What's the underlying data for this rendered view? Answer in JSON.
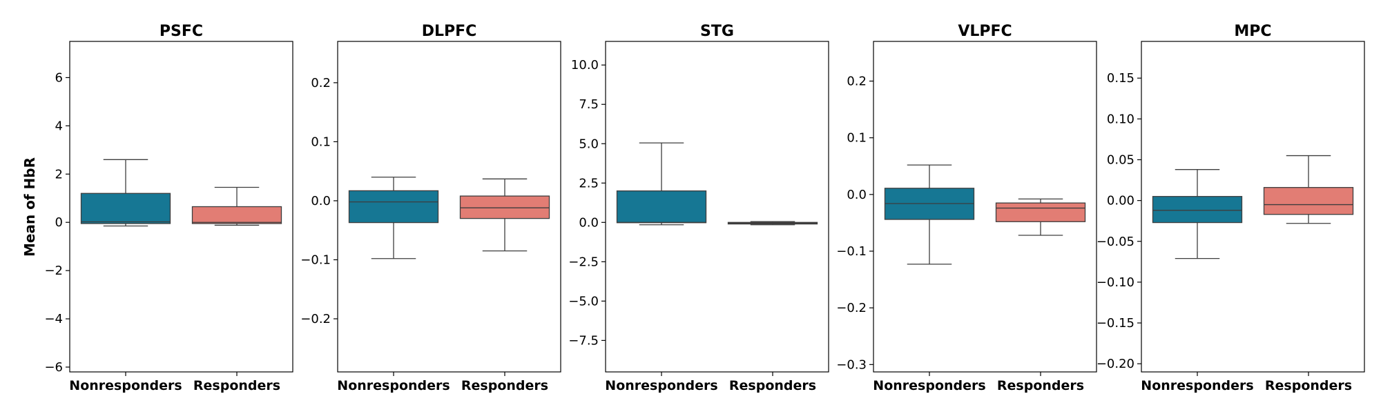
{
  "chart_data": {
    "type": "box",
    "ylabel": "Mean of HbR",
    "categories": [
      "Nonresponders",
      "Responders"
    ],
    "colors": {
      "Nonresponders": "#167794",
      "Responders": "#e27d74"
    },
    "panels": [
      {
        "title": "PSFC",
        "ylim": [
          -6.2,
          7.5
        ],
        "yticks": [
          -6,
          -4,
          -2,
          0,
          2,
          4,
          6
        ],
        "tick_labels": [
          "−6",
          "−4",
          "−2",
          "0",
          "2",
          "4",
          "6"
        ],
        "boxes": [
          {
            "category": "Nonresponders",
            "whisker_low": -0.15,
            "q1": -0.05,
            "median": 0.02,
            "q3": 1.2,
            "whisker_high": 2.6
          },
          {
            "category": "Responders",
            "whisker_low": -0.12,
            "q1": -0.05,
            "median": 0.0,
            "q3": 0.65,
            "whisker_high": 1.45
          }
        ]
      },
      {
        "title": "DLPFC",
        "ylim": [
          -0.29,
          0.27
        ],
        "yticks": [
          -0.2,
          -0.1,
          0.0,
          0.1,
          0.2
        ],
        "tick_labels": [
          "−0.2",
          "−0.1",
          "0.0",
          "0.1",
          "0.2"
        ],
        "boxes": [
          {
            "category": "Nonresponders",
            "whisker_low": -0.098,
            "q1": -0.037,
            "median": -0.002,
            "q3": 0.017,
            "whisker_high": 0.04
          },
          {
            "category": "Responders",
            "whisker_low": -0.085,
            "q1": -0.03,
            "median": -0.012,
            "q3": 0.008,
            "whisker_high": 0.037
          }
        ]
      },
      {
        "title": "STG",
        "ylim": [
          -9.5,
          11.5
        ],
        "yticks": [
          -7.5,
          -5.0,
          -2.5,
          0.0,
          2.5,
          5.0,
          7.5,
          10.0
        ],
        "tick_labels": [
          "−7.5",
          "−5.0",
          "−2.5",
          "0.0",
          "2.5",
          "5.0",
          "7.5",
          "10.0"
        ],
        "boxes": [
          {
            "category": "Nonresponders",
            "whisker_low": -0.15,
            "q1": -0.02,
            "median": 0.0,
            "q3": 2.0,
            "whisker_high": 5.05
          },
          {
            "category": "Responders",
            "whisker_low": -0.15,
            "q1": -0.1,
            "median": -0.05,
            "q3": 0.0,
            "whisker_high": 0.05
          }
        ]
      },
      {
        "title": "VLPFC",
        "ylim": [
          -0.313,
          0.27
        ],
        "yticks": [
          -0.3,
          -0.2,
          -0.1,
          0.0,
          0.1,
          0.2
        ],
        "tick_labels": [
          "−0.3",
          "−0.2",
          "−0.1",
          "0.0",
          "0.1",
          "0.2"
        ],
        "boxes": [
          {
            "category": "Nonresponders",
            "whisker_low": -0.123,
            "q1": -0.044,
            "median": -0.016,
            "q3": 0.011,
            "whisker_high": 0.052
          },
          {
            "category": "Responders",
            "whisker_low": -0.072,
            "q1": -0.048,
            "median": -0.024,
            "q3": -0.015,
            "whisker_high": -0.008
          }
        ]
      },
      {
        "title": "MPC",
        "ylim": [
          -0.21,
          0.195
        ],
        "yticks": [
          -0.2,
          -0.15,
          -0.1,
          -0.05,
          0.0,
          0.05,
          0.1,
          0.15
        ],
        "tick_labels": [
          "−0.20",
          "−0.15",
          "−0.10",
          "−0.05",
          "0.00",
          "0.05",
          "0.10",
          "0.15"
        ],
        "boxes": [
          {
            "category": "Nonresponders",
            "whisker_low": -0.071,
            "q1": -0.027,
            "median": -0.012,
            "q3": 0.005,
            "whisker_high": 0.038
          },
          {
            "category": "Responders",
            "whisker_low": -0.028,
            "q1": -0.017,
            "median": -0.005,
            "q3": 0.016,
            "whisker_high": 0.055
          }
        ]
      }
    ]
  }
}
